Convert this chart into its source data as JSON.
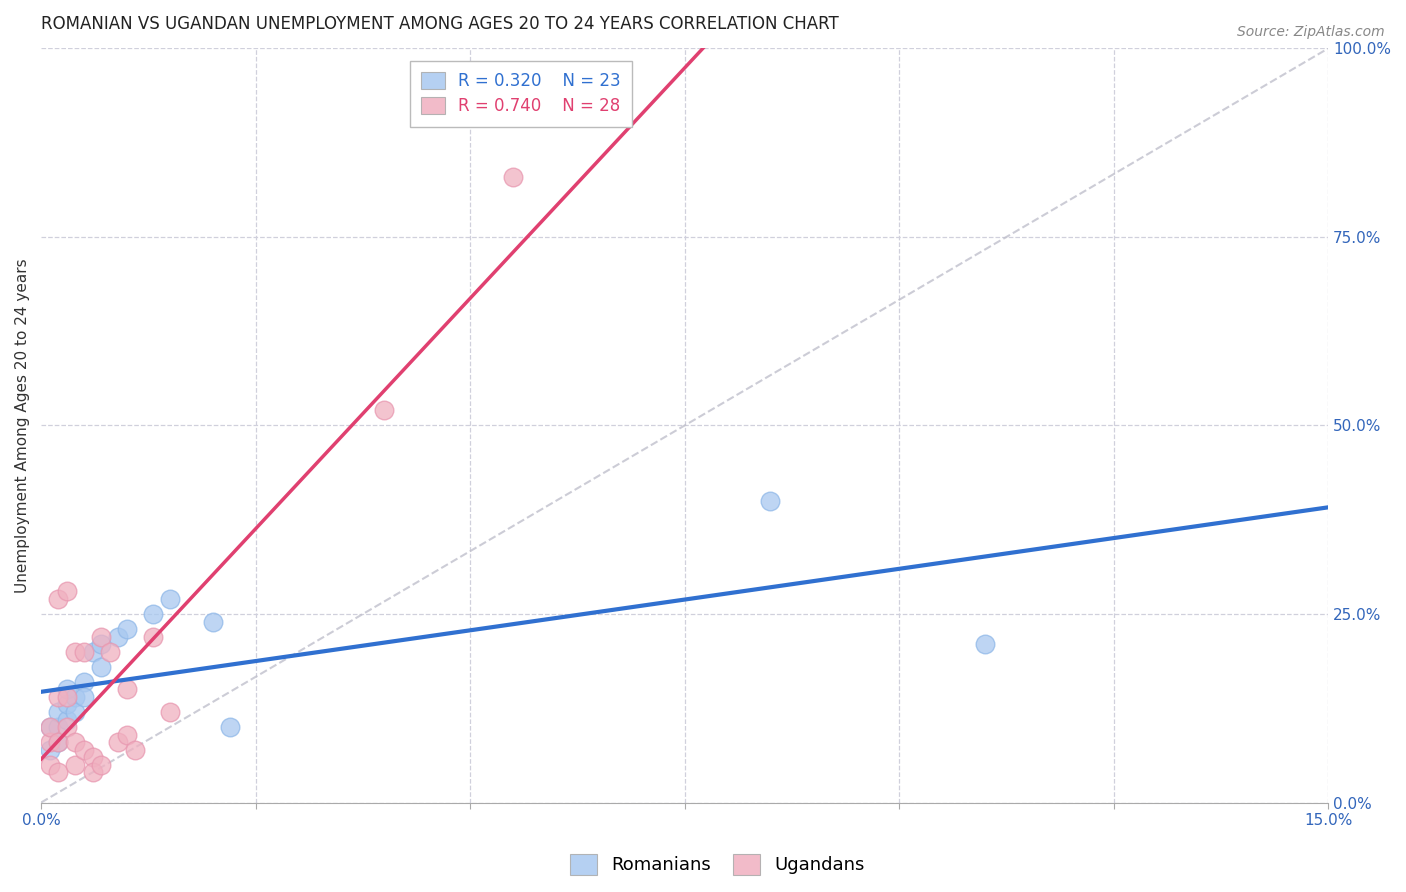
{
  "title": "ROMANIAN VS UGANDAN UNEMPLOYMENT AMONG AGES 20 TO 24 YEARS CORRELATION CHART",
  "source": "Source: ZipAtlas.com",
  "ylabel": "Unemployment Among Ages 20 to 24 years",
  "xlim": [
    0.0,
    0.15
  ],
  "ylim": [
    0.0,
    1.0
  ],
  "xticks": [
    0.0,
    0.025,
    0.05,
    0.075,
    0.1,
    0.125,
    0.15
  ],
  "xtick_labels": [
    "0.0%",
    "",
    "",
    "",
    "",
    "",
    "15.0%"
  ],
  "ytick_labels_right": [
    "0.0%",
    "25.0%",
    "50.0%",
    "75.0%",
    "100.0%"
  ],
  "yticks_right": [
    0.0,
    0.25,
    0.5,
    0.75,
    1.0
  ],
  "romanian_R": 0.32,
  "romanian_N": 23,
  "ugandan_R": 0.74,
  "ugandan_N": 28,
  "romanian_color": "#a8c8f0",
  "ugandan_color": "#f0b0c0",
  "romanian_line_color": "#3070d0",
  "ugandan_line_color": "#e04070",
  "diag_line_color": "#c0c0cc",
  "background_color": "#ffffff",
  "grid_color": "#d0d0dc",
  "romanian_x": [
    0.001,
    0.001,
    0.002,
    0.002,
    0.002,
    0.003,
    0.003,
    0.003,
    0.004,
    0.004,
    0.005,
    0.005,
    0.006,
    0.007,
    0.007,
    0.009,
    0.01,
    0.013,
    0.015,
    0.02,
    0.022,
    0.085,
    0.11
  ],
  "romanian_y": [
    0.07,
    0.1,
    0.08,
    0.1,
    0.12,
    0.11,
    0.13,
    0.15,
    0.14,
    0.12,
    0.16,
    0.14,
    0.2,
    0.21,
    0.18,
    0.22,
    0.23,
    0.25,
    0.27,
    0.24,
    0.1,
    0.4,
    0.21
  ],
  "ugandan_x": [
    0.001,
    0.001,
    0.001,
    0.002,
    0.002,
    0.002,
    0.002,
    0.003,
    0.003,
    0.003,
    0.004,
    0.004,
    0.004,
    0.005,
    0.005,
    0.006,
    0.006,
    0.007,
    0.007,
    0.008,
    0.009,
    0.01,
    0.01,
    0.011,
    0.013,
    0.015,
    0.04,
    0.055
  ],
  "ugandan_y": [
    0.05,
    0.08,
    0.1,
    0.04,
    0.08,
    0.14,
    0.27,
    0.1,
    0.14,
    0.28,
    0.05,
    0.08,
    0.2,
    0.07,
    0.2,
    0.06,
    0.04,
    0.05,
    0.22,
    0.2,
    0.08,
    0.09,
    0.15,
    0.07,
    0.22,
    0.12,
    0.52,
    0.83
  ],
  "title_fontsize": 12,
  "axis_label_fontsize": 11,
  "tick_fontsize": 11,
  "legend_fontsize": 12,
  "source_fontsize": 10,
  "marker_size": 180
}
